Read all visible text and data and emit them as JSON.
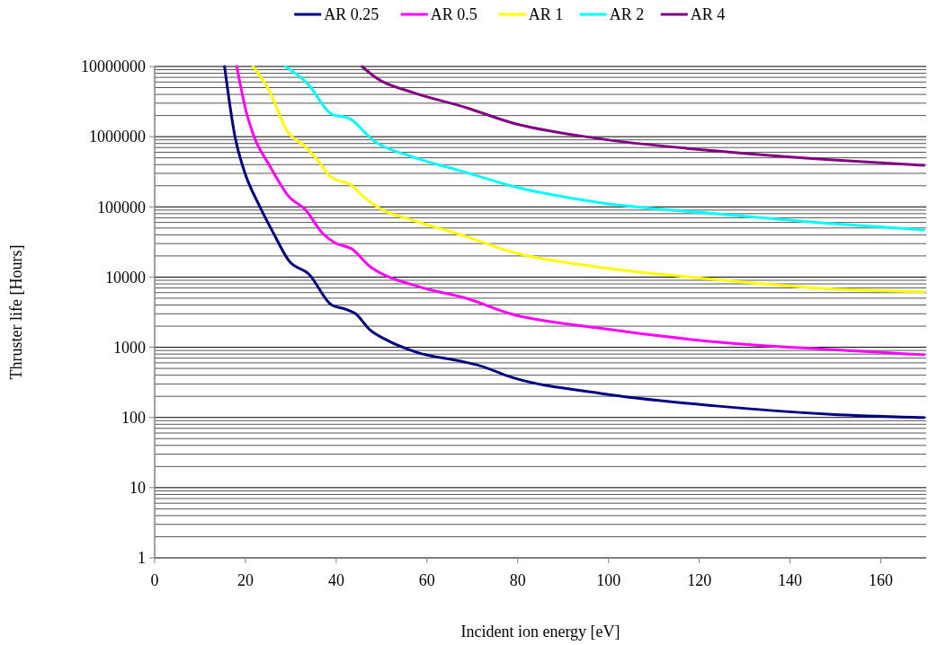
{
  "chart_data": {
    "type": "line",
    "xlabel": "Incident ion energy [eV]",
    "ylabel": "Thruster life [Hours]",
    "log": "y",
    "grid": "y",
    "legend": "top",
    "line_style": "solid",
    "marker": "none",
    "xlim": [
      0,
      170
    ],
    "xticks": [
      0,
      20,
      40,
      60,
      80,
      100,
      120,
      140,
      160
    ],
    "ylim": [
      1,
      10000000
    ],
    "yticks": [
      1,
      {
        "value": 2,
        "label": null
      },
      {
        "value": 3,
        "label": null
      },
      {
        "value": 4,
        "label": null
      },
      {
        "value": 5,
        "label": null
      },
      {
        "value": 6,
        "label": null
      },
      {
        "value": 7,
        "label": null
      },
      {
        "value": 8,
        "label": null
      },
      {
        "value": 9,
        "label": null
      },
      10,
      {
        "value": 20,
        "label": null
      },
      {
        "value": 30,
        "label": null
      },
      {
        "value": 40,
        "label": null
      },
      {
        "value": 50,
        "label": null
      },
      {
        "value": 60,
        "label": null
      },
      {
        "value": 70,
        "label": null
      },
      {
        "value": 80,
        "label": null
      },
      {
        "value": 90,
        "label": null
      },
      100,
      {
        "value": 200,
        "label": null
      },
      {
        "value": 300,
        "label": null
      },
      {
        "value": 400,
        "label": null
      },
      {
        "value": 500,
        "label": null
      },
      {
        "value": 600,
        "label": null
      },
      {
        "value": 700,
        "label": null
      },
      {
        "value": 800,
        "label": null
      },
      {
        "value": 900,
        "label": null
      },
      1000,
      {
        "value": 2000,
        "label": null
      },
      {
        "value": 3000,
        "label": null
      },
      {
        "value": 4000,
        "label": null
      },
      {
        "value": 5000,
        "label": null
      },
      {
        "value": 6000,
        "label": null
      },
      {
        "value": 7000,
        "label": null
      },
      {
        "value": 8000,
        "label": null
      },
      {
        "value": 9000,
        "label": null
      },
      10000,
      {
        "value": 20000,
        "label": null
      },
      {
        "value": 30000,
        "label": null
      },
      {
        "value": 40000,
        "label": null
      },
      {
        "value": 50000,
        "label": null
      },
      {
        "value": 60000,
        "label": null
      },
      {
        "value": 70000,
        "label": null
      },
      {
        "value": 80000,
        "label": null
      },
      {
        "value": 90000,
        "label": null
      },
      100000,
      {
        "value": 200000,
        "label": null
      },
      {
        "value": 300000,
        "label": null
      },
      {
        "value": 400000,
        "label": null
      },
      {
        "value": 500000,
        "label": null
      },
      {
        "value": 600000,
        "label": null
      },
      {
        "value": 700000,
        "label": null
      },
      {
        "value": 800000,
        "label": null
      },
      {
        "value": 900000,
        "label": null
      },
      1000000,
      {
        "value": 2000000,
        "label": null
      },
      {
        "value": 3000000,
        "label": null
      },
      {
        "value": 4000000,
        "label": null
      },
      {
        "value": 5000000,
        "label": null
      },
      {
        "value": 6000000,
        "label": null
      },
      {
        "value": 7000000,
        "label": null
      },
      {
        "value": 8000000,
        "label": null
      },
      {
        "value": 9000000,
        "label": null
      },
      10000000
    ],
    "series": [
      {
        "name": "AR 0.25",
        "color": "#000080",
        "x": [
          15.4,
          17.7,
          19.7,
          23.2,
          26.2,
          29.6,
          34,
          39,
          42,
          44.3,
          47.3,
          50.8,
          57.7,
          67.6,
          71.5,
          78.6,
          98.3,
          123.7,
          149,
          169.5
        ],
        "values": [
          10000000,
          1000000,
          330000,
          100000,
          42000,
          17000,
          11000,
          4000,
          3500,
          3000,
          1800,
          1300,
          850,
          630,
          550,
          375,
          220,
          146,
          111,
          100
        ]
      },
      {
        "name": "AR 0.5",
        "color": "#ff00ff",
        "x": [
          18.1,
          20.3,
          21.9,
          25.2,
          29.8,
          33.1,
          37,
          39.6,
          43.5,
          47.5,
          50.2,
          56.7,
          60.3,
          68.6,
          78.4,
          97.3,
          123.3,
          148.6,
          169.5
        ],
        "values": [
          10000000,
          2100000,
          1000000,
          400000,
          135000,
          93000,
          42000,
          31000,
          25000,
          14000,
          11000,
          7800,
          6700,
          5000,
          3000,
          1900,
          1200,
          930,
          780
        ]
      },
      {
        "name": "AR 1",
        "color": "#ffff00",
        "x": [
          21.7,
          25.2,
          29.2,
          33.1,
          35.7,
          39,
          43,
          46.3,
          49.5,
          56.7,
          68.6,
          78.4,
          97.3,
          123.3,
          148.6,
          169.5
        ],
        "values": [
          10000000,
          4600000,
          1200000,
          730000,
          480000,
          260000,
          210000,
          135000,
          96000,
          65000,
          38000,
          23000,
          14000,
          9300,
          6800,
          6200
        ]
      },
      {
        "name": "AR 2",
        "color": "#00ffff",
        "x": [
          28.8,
          33.7,
          39,
          43,
          48.3,
          56.7,
          68.6,
          78.4,
          97.3,
          123.3,
          148.6,
          169.5
        ],
        "values": [
          10000000,
          5700000,
          2100000,
          1800000,
          870000,
          520000,
          310000,
          200000,
          117000,
          80000,
          58000,
          47000
        ]
      },
      {
        "name": "AR 4",
        "color": "#800080",
        "x": [
          45.7,
          48.9,
          56.7,
          68.6,
          78.4,
          97.3,
          123.3,
          148.6,
          169.5
        ],
        "values": [
          10000000,
          6800000,
          4300000,
          2600000,
          1600000,
          950000,
          630000,
          470000,
          390000
        ]
      }
    ]
  }
}
